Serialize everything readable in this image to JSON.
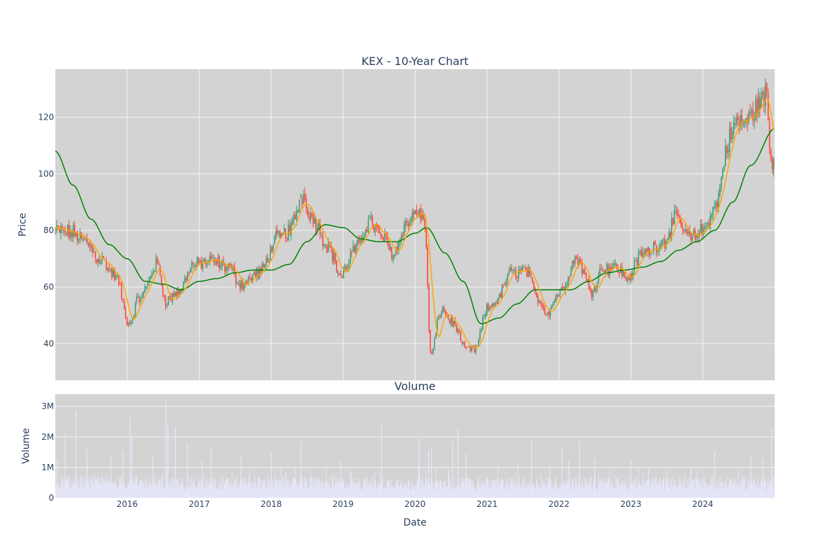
{
  "chart_data": [
    {
      "type": "candlestick",
      "title": "KEX - 10-Year Chart",
      "ylabel": "Price",
      "xlim": [
        "2015-01-01",
        "2024-12-31"
      ],
      "ylim": [
        27,
        137
      ],
      "yticks": [
        40,
        60,
        80,
        100,
        120
      ],
      "grid": true,
      "colors": {
        "up": "#3d9970",
        "down": "#ff4136",
        "ma_fast": "#ffa500",
        "ma_slow": "#008000",
        "background": "#d3d3d3"
      },
      "anchors": [
        [
          "2015-01-01",
          80
        ],
        [
          "2015-04-01",
          79
        ],
        [
          "2015-06-01",
          76
        ],
        [
          "2015-08-15",
          70
        ],
        [
          "2015-11-01",
          64
        ],
        [
          "2016-01-10",
          47
        ],
        [
          "2016-03-01",
          56
        ],
        [
          "2016-06-01",
          68
        ],
        [
          "2016-07-15",
          55
        ],
        [
          "2016-09-15",
          58
        ],
        [
          "2016-12-01",
          68
        ],
        [
          "2017-03-01",
          69
        ],
        [
          "2017-06-01",
          67
        ],
        [
          "2017-08-01",
          61
        ],
        [
          "2017-11-01",
          65
        ],
        [
          "2018-02-01",
          77
        ],
        [
          "2018-04-01",
          80
        ],
        [
          "2018-06-10",
          92
        ],
        [
          "2018-08-01",
          84
        ],
        [
          "2018-10-15",
          75
        ],
        [
          "2018-12-20",
          64
        ],
        [
          "2019-03-01",
          73
        ],
        [
          "2019-05-15",
          83
        ],
        [
          "2019-07-15",
          78
        ],
        [
          "2019-09-15",
          72
        ],
        [
          "2019-11-15",
          82
        ],
        [
          "2020-01-15",
          87
        ],
        [
          "2020-02-20",
          82
        ],
        [
          "2020-03-20",
          36
        ],
        [
          "2020-05-15",
          52
        ],
        [
          "2020-07-15",
          47
        ],
        [
          "2020-09-15",
          38
        ],
        [
          "2020-11-01",
          38
        ],
        [
          "2021-01-01",
          52
        ],
        [
          "2021-02-15",
          55
        ],
        [
          "2021-05-01",
          65
        ],
        [
          "2021-07-15",
          66
        ],
        [
          "2021-09-15",
          56
        ],
        [
          "2021-11-01",
          51
        ],
        [
          "2022-01-01",
          58
        ],
        [
          "2022-04-01",
          70
        ],
        [
          "2022-06-15",
          59
        ],
        [
          "2022-08-15",
          67
        ],
        [
          "2022-10-15",
          67
        ],
        [
          "2022-12-15",
          63
        ],
        [
          "2023-03-01",
          72
        ],
        [
          "2023-06-15",
          76
        ],
        [
          "2023-08-15",
          84
        ],
        [
          "2023-11-01",
          77
        ],
        [
          "2024-01-01",
          80
        ],
        [
          "2024-03-01",
          88
        ],
        [
          "2024-05-15",
          112
        ],
        [
          "2024-06-15",
          118
        ],
        [
          "2024-08-15",
          119
        ],
        [
          "2024-10-15",
          125
        ],
        [
          "2024-11-20",
          128
        ],
        [
          "2024-12-10",
          105
        ],
        [
          "2024-12-31",
          106
        ]
      ],
      "ma_slow_anchors": [
        [
          "2015-01-01",
          108
        ],
        [
          "2015-04-01",
          96
        ],
        [
          "2015-07-01",
          84
        ],
        [
          "2015-10-01",
          75
        ],
        [
          "2016-01-01",
          70
        ],
        [
          "2016-04-01",
          62
        ],
        [
          "2016-07-01",
          61
        ],
        [
          "2016-10-01",
          59
        ],
        [
          "2017-01-01",
          62
        ],
        [
          "2017-04-01",
          63
        ],
        [
          "2017-07-01",
          65
        ],
        [
          "2017-10-01",
          66
        ],
        [
          "2018-01-01",
          66
        ],
        [
          "2018-04-01",
          68
        ],
        [
          "2018-07-01",
          76
        ],
        [
          "2018-10-01",
          82
        ],
        [
          "2019-01-01",
          81
        ],
        [
          "2019-04-01",
          77
        ],
        [
          "2019-07-01",
          76
        ],
        [
          "2019-10-01",
          76
        ],
        [
          "2020-01-01",
          79
        ],
        [
          "2020-03-01",
          81
        ],
        [
          "2020-06-01",
          72
        ],
        [
          "2020-09-01",
          62
        ],
        [
          "2020-12-01",
          47
        ],
        [
          "2021-03-01",
          49
        ],
        [
          "2021-06-01",
          54
        ],
        [
          "2021-09-01",
          59
        ],
        [
          "2021-12-01",
          59
        ],
        [
          "2022-03-01",
          59
        ],
        [
          "2022-06-01",
          62
        ],
        [
          "2022-09-01",
          65
        ],
        [
          "2022-12-01",
          66
        ],
        [
          "2023-03-01",
          67
        ],
        [
          "2023-06-01",
          69
        ],
        [
          "2023-09-01",
          73
        ],
        [
          "2023-12-01",
          76
        ],
        [
          "2024-03-01",
          80
        ],
        [
          "2024-06-01",
          90
        ],
        [
          "2024-09-01",
          103
        ],
        [
          "2024-12-31",
          116
        ]
      ]
    },
    {
      "type": "bar",
      "title": "Volume",
      "xlabel": "Date",
      "ylabel": "Volume",
      "ylim": [
        0,
        3400000
      ],
      "yticks": [
        0,
        1000000,
        2000000,
        3000000
      ],
      "ytick_labels": [
        "0",
        "1M",
        "2M",
        "3M"
      ],
      "xticks": [
        "2016-01-01",
        "2017-01-01",
        "2018-01-01",
        "2019-01-01",
        "2020-01-01",
        "2021-01-01",
        "2022-01-01",
        "2023-01-01",
        "2024-01-01"
      ],
      "xtick_labels": [
        "2016",
        "2017",
        "2018",
        "2019",
        "2020",
        "2021",
        "2022",
        "2023",
        "2024"
      ],
      "grid": true,
      "colors": {
        "bars": "#e6e6fa",
        "background": "#d3d3d3"
      },
      "spikes": [
        [
          "2015-01-10",
          1300000
        ],
        [
          "2015-02-20",
          2100000
        ],
        [
          "2015-04-15",
          2850000
        ],
        [
          "2015-06-10",
          1600000
        ],
        [
          "2015-10-10",
          1400000
        ],
        [
          "2015-12-10",
          1550000
        ],
        [
          "2016-01-15",
          2650000
        ],
        [
          "2016-01-25",
          2000000
        ],
        [
          "2016-05-10",
          1350000
        ],
        [
          "2016-07-15",
          3250000
        ],
        [
          "2016-07-25",
          2450000
        ],
        [
          "2016-09-01",
          2350000
        ],
        [
          "2016-11-01",
          1800000
        ],
        [
          "2017-01-15",
          1200000
        ],
        [
          "2017-03-01",
          1650000
        ],
        [
          "2017-08-01",
          1400000
        ],
        [
          "2018-01-01",
          1500000
        ],
        [
          "2018-06-01",
          1850000
        ],
        [
          "2018-12-20",
          1200000
        ],
        [
          "2019-07-15",
          2450000
        ],
        [
          "2020-01-20",
          1950000
        ],
        [
          "2020-03-10",
          1550000
        ],
        [
          "2020-03-25",
          1650000
        ],
        [
          "2020-07-10",
          1850000
        ],
        [
          "2020-08-05",
          2250000
        ],
        [
          "2020-09-15",
          1450000
        ],
        [
          "2021-08-15",
          1900000
        ],
        [
          "2021-11-15",
          1050000
        ],
        [
          "2022-01-15",
          1650000
        ],
        [
          "2022-02-20",
          1200000
        ],
        [
          "2022-04-15",
          1850000
        ],
        [
          "2022-07-01",
          1300000
        ],
        [
          "2023-01-01",
          1250000
        ],
        [
          "2023-04-01",
          1000000
        ],
        [
          "2023-11-01",
          900000
        ],
        [
          "2024-03-01",
          1500000
        ],
        [
          "2024-09-01",
          1400000
        ],
        [
          "2024-11-01",
          1300000
        ],
        [
          "2024-12-15",
          2250000
        ]
      ]
    }
  ]
}
